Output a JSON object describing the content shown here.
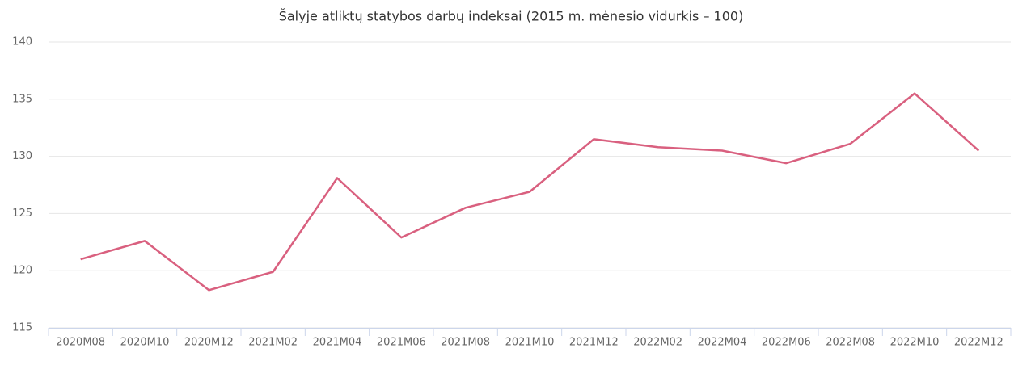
{
  "chart_data": {
    "type": "line",
    "title": "Šalyje atliktų statybos darbų indeksai (2015 m. mėnesio vidurkis – 100)",
    "categories": [
      "2020M08",
      "2020M10",
      "2020M12",
      "2021M02",
      "2021M04",
      "2021M06",
      "2021M08",
      "2021M10",
      "2021M12",
      "2022M02",
      "2022M04",
      "2022M06",
      "2022M08",
      "2022M10",
      "2022M12"
    ],
    "values": [
      121.0,
      122.6,
      118.3,
      119.9,
      128.1,
      122.9,
      125.5,
      126.9,
      131.5,
      130.8,
      130.5,
      129.4,
      131.1,
      135.5,
      130.5
    ],
    "color": "#d9607f",
    "ylim": [
      115,
      140
    ],
    "yticks": [
      115,
      120,
      125,
      130,
      135,
      140
    ],
    "grid": true
  }
}
